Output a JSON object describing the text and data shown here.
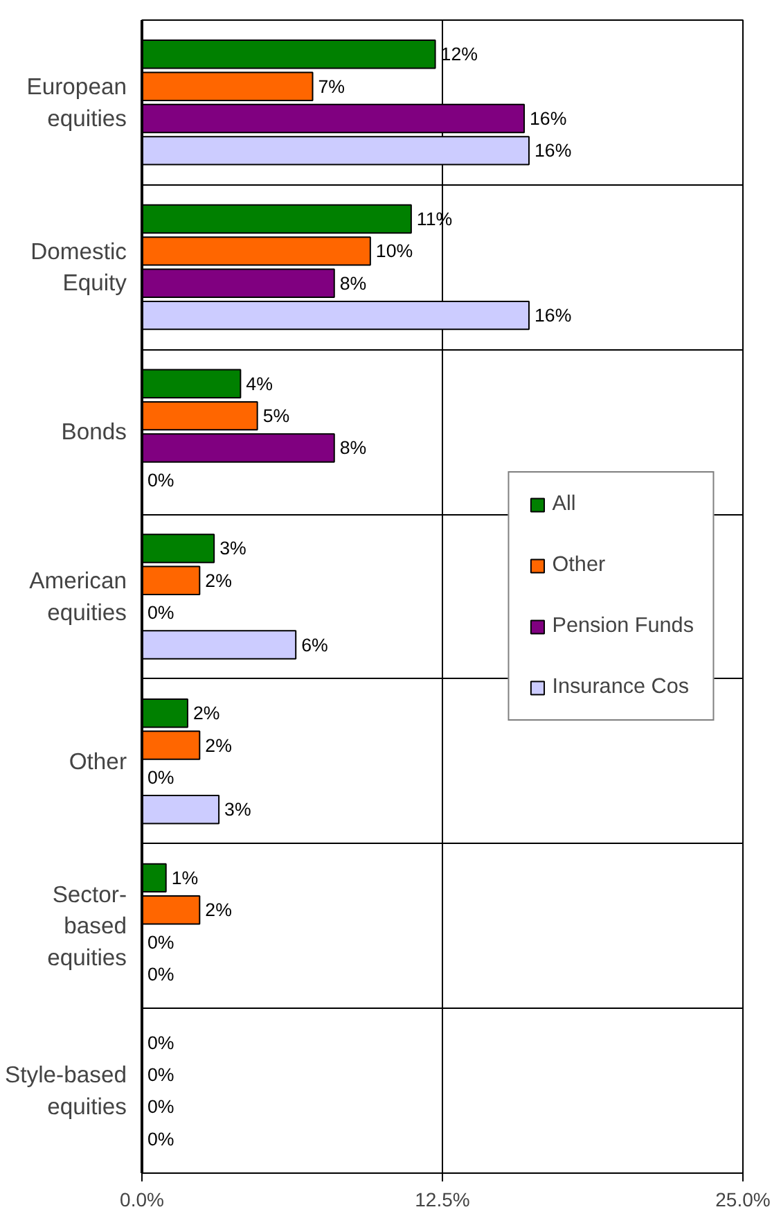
{
  "chart_data": {
    "type": "bar",
    "orientation": "horizontal",
    "categories": [
      "European equities",
      "Domestic Equity",
      "Bonds",
      "American equities",
      "Other",
      "Sector-based equities",
      "Style-based equities"
    ],
    "series": [
      {
        "name": "All",
        "color": "#008000",
        "values": [
          12.2,
          11.2,
          4.1,
          3.0,
          1.9,
          1.0,
          0
        ],
        "value_labels": [
          "12%",
          "11%",
          "4%",
          "3%",
          "2%",
          "1%",
          "0%"
        ]
      },
      {
        "name": "Other",
        "color": "#ff6600",
        "values": [
          7.1,
          9.5,
          4.8,
          2.4,
          2.4,
          2.4,
          0
        ],
        "value_labels": [
          "7%",
          "10%",
          "5%",
          "2%",
          "2%",
          "2%",
          "0%"
        ]
      },
      {
        "name": "Pension Funds",
        "color": "#800080",
        "values": [
          15.9,
          8.0,
          8.0,
          0,
          0,
          0,
          0
        ],
        "value_labels": [
          "16%",
          "8%",
          "8%",
          "0%",
          "0%",
          "0%",
          "0%"
        ]
      },
      {
        "name": "Insurance Cos",
        "color": "#ccccff",
        "values": [
          16.1,
          16.1,
          0,
          6.4,
          3.2,
          0,
          0
        ],
        "value_labels": [
          "16%",
          "16%",
          "0%",
          "6%",
          "3%",
          "0%",
          "0%"
        ]
      }
    ],
    "xlim": [
      0,
      25
    ],
    "xticks": [
      {
        "value": 0,
        "label": "0.0%"
      },
      {
        "value": 12.5,
        "label": "12.5%"
      },
      {
        "value": 25,
        "label": "25.0%"
      }
    ],
    "grid": true,
    "legend": "right"
  }
}
